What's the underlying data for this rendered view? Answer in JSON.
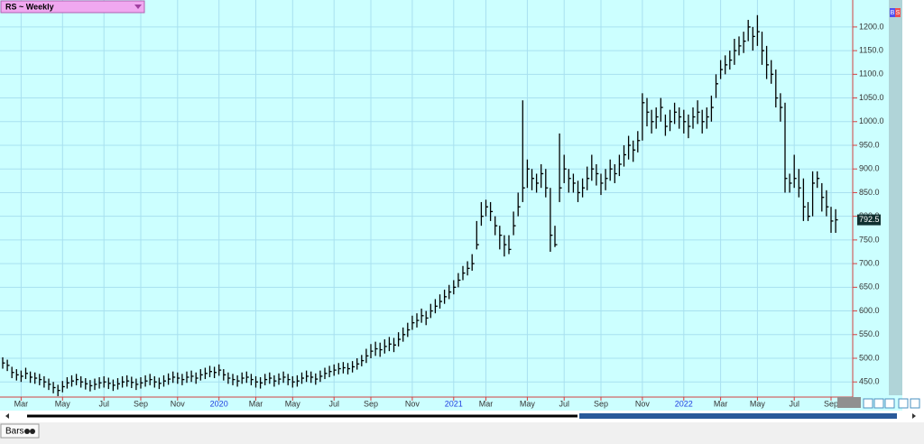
{
  "chart_data": {
    "type": "ohlc",
    "title": "RS ~ Weekly",
    "color": "#000000",
    "grid": true,
    "categories": [
      null,
      null,
      null,
      null,
      "Mar",
      null,
      null,
      null,
      null,
      null,
      null,
      null,
      null,
      "May",
      null,
      null,
      null,
      null,
      null,
      null,
      null,
      null,
      "Jul",
      null,
      null,
      null,
      null,
      null,
      null,
      null,
      "Sep",
      null,
      null,
      null,
      null,
      null,
      null,
      null,
      "Nov",
      null,
      null,
      null,
      null,
      null,
      null,
      null,
      null,
      "2020",
      null,
      null,
      null,
      null,
      null,
      null,
      null,
      "Mar",
      null,
      null,
      null,
      null,
      null,
      null,
      null,
      "May",
      null,
      null,
      null,
      null,
      null,
      null,
      null,
      null,
      "Jul",
      null,
      null,
      null,
      null,
      null,
      null,
      null,
      "Sep",
      null,
      null,
      null,
      null,
      null,
      null,
      null,
      null,
      "Nov",
      null,
      null,
      null,
      null,
      null,
      null,
      null,
      null,
      "2021",
      null,
      null,
      null,
      null,
      null,
      null,
      "Mar",
      null,
      null,
      null,
      null,
      null,
      null,
      null,
      null,
      "May",
      null,
      null,
      null,
      null,
      null,
      null,
      null,
      "Jul",
      null,
      null,
      null,
      null,
      null,
      null,
      null,
      "Sep",
      null,
      null,
      null,
      null,
      null,
      null,
      null,
      null,
      "Nov",
      null,
      null,
      null,
      null,
      null,
      null,
      null,
      null,
      "2022",
      null,
      null,
      null,
      null,
      null,
      null,
      null,
      "Mar",
      null,
      null,
      null,
      null,
      null,
      null,
      null,
      "May",
      null,
      null,
      null,
      null,
      null,
      null,
      null,
      "Jul",
      null,
      null,
      null,
      null,
      null,
      null,
      null,
      "Sep",
      null
    ],
    "high": [
      502,
      497,
      482,
      477,
      474,
      480,
      472,
      470,
      467,
      462,
      457,
      450,
      444,
      452,
      460,
      464,
      467,
      462,
      458,
      454,
      457,
      460,
      462,
      459,
      455,
      458,
      462,
      464,
      461,
      457,
      460,
      464,
      467,
      462,
      459,
      464,
      468,
      472,
      470,
      467,
      472,
      474,
      470,
      477,
      480,
      484,
      482,
      487,
      477,
      470,
      467,
      464,
      470,
      472,
      467,
      462,
      460,
      467,
      470,
      464,
      468,
      472,
      467,
      462,
      464,
      470,
      474,
      472,
      468,
      474,
      480,
      484,
      487,
      490,
      492,
      490,
      494,
      500,
      507,
      520,
      530,
      535,
      533,
      540,
      545,
      543,
      555,
      565,
      575,
      590,
      595,
      605,
      600,
      615,
      625,
      635,
      645,
      655,
      665,
      680,
      695,
      705,
      720,
      790,
      830,
      835,
      830,
      800,
      780,
      760,
      760,
      810,
      850,
      1045,
      920,
      900,
      890,
      910,
      900,
      860,
      780,
      975,
      930,
      900,
      890,
      875,
      880,
      905,
      930,
      910,
      890,
      900,
      920,
      910,
      930,
      950,
      970,
      960,
      980,
      1060,
      1050,
      1025,
      1030,
      1050,
      1015,
      1025,
      1040,
      1030,
      1025,
      1015,
      1030,
      1045,
      1025,
      1030,
      1055,
      1100,
      1130,
      1140,
      1150,
      1175,
      1180,
      1190,
      1215,
      1200,
      1225,
      1190,
      1160,
      1130,
      1110,
      1060,
      1040,
      890,
      930,
      900,
      880,
      830,
      895,
      895,
      870,
      855,
      820,
      815
    ],
    "low": [
      478,
      473,
      458,
      453,
      450,
      456,
      448,
      446,
      443,
      438,
      433,
      426,
      420,
      428,
      436,
      440,
      443,
      438,
      434,
      430,
      433,
      436,
      438,
      435,
      431,
      434,
      438,
      440,
      437,
      433,
      436,
      440,
      443,
      438,
      435,
      440,
      444,
      448,
      446,
      443,
      448,
      450,
      446,
      453,
      456,
      460,
      458,
      463,
      453,
      446,
      443,
      440,
      446,
      448,
      443,
      438,
      436,
      443,
      446,
      440,
      444,
      448,
      443,
      438,
      440,
      446,
      450,
      448,
      444,
      450,
      456,
      460,
      463,
      466,
      468,
      466,
      470,
      476,
      483,
      490,
      500,
      505,
      503,
      510,
      515,
      513,
      525,
      535,
      545,
      560,
      565,
      575,
      570,
      585,
      595,
      605,
      615,
      625,
      635,
      650,
      665,
      675,
      685,
      730,
      780,
      800,
      790,
      760,
      730,
      715,
      720,
      760,
      800,
      830,
      860,
      855,
      850,
      860,
      840,
      725,
      735,
      830,
      870,
      850,
      850,
      830,
      840,
      855,
      875,
      865,
      845,
      855,
      875,
      870,
      885,
      905,
      920,
      915,
      935,
      960,
      990,
      975,
      985,
      1000,
      970,
      980,
      995,
      985,
      975,
      965,
      985,
      995,
      975,
      985,
      1000,
      1050,
      1090,
      1100,
      1110,
      1120,
      1140,
      1145,
      1170,
      1150,
      1160,
      1120,
      1090,
      1080,
      1030,
      1000,
      850,
      850,
      860,
      840,
      790,
      790,
      800,
      860,
      810,
      800,
      765,
      765
    ],
    "close": [
      490,
      485,
      470,
      465,
      462,
      468,
      460,
      458,
      455,
      450,
      445,
      438,
      432,
      440,
      448,
      452,
      455,
      450,
      446,
      442,
      445,
      448,
      450,
      447,
      443,
      446,
      450,
      452,
      449,
      445,
      448,
      452,
      455,
      450,
      447,
      452,
      456,
      460,
      458,
      455,
      460,
      462,
      458,
      465,
      468,
      472,
      470,
      475,
      465,
      458,
      455,
      452,
      458,
      460,
      455,
      450,
      448,
      455,
      458,
      452,
      456,
      460,
      455,
      450,
      452,
      458,
      462,
      460,
      456,
      462,
      468,
      472,
      475,
      478,
      480,
      478,
      482,
      488,
      495,
      505,
      515,
      520,
      518,
      525,
      530,
      528,
      540,
      550,
      560,
      575,
      580,
      590,
      585,
      600,
      610,
      620,
      630,
      640,
      650,
      665,
      680,
      690,
      700,
      740,
      800,
      820,
      810,
      780,
      760,
      740,
      730,
      780,
      820,
      860,
      900,
      880,
      870,
      890,
      860,
      760,
      740,
      860,
      900,
      880,
      870,
      850,
      860,
      880,
      900,
      890,
      870,
      880,
      900,
      890,
      910,
      930,
      950,
      940,
      960,
      1040,
      1020,
      1000,
      1010,
      1030,
      990,
      1000,
      1020,
      1010,
      1000,
      990,
      1010,
      1020,
      1000,
      1010,
      1030,
      1080,
      1110,
      1120,
      1130,
      1150,
      1160,
      1170,
      1200,
      1180,
      1190,
      1150,
      1120,
      1100,
      1050,
      1030,
      880,
      870,
      880,
      860,
      820,
      800,
      870,
      880,
      840,
      820,
      790,
      792.5
    ],
    "ylim": [
      418,
      1257
    ],
    "yticks": [
      {
        "value": 450,
        "label": "450.0"
      },
      {
        "value": 500,
        "label": "500.0"
      },
      {
        "value": 550,
        "label": "550.0"
      },
      {
        "value": 600,
        "label": "600.0"
      },
      {
        "value": 650,
        "label": "650.0"
      },
      {
        "value": 700,
        "label": "700.0"
      },
      {
        "value": 750,
        "label": "750.0"
      },
      {
        "value": 800,
        "label": "800.0"
      },
      {
        "value": 850,
        "label": "850.0"
      },
      {
        "value": 900,
        "label": "900.0"
      },
      {
        "value": 950,
        "label": "950.0"
      },
      {
        "value": 1000,
        "label": "1000.0"
      },
      {
        "value": 1050,
        "label": "1050.0"
      },
      {
        "value": 1100,
        "label": "1100.0"
      },
      {
        "value": 1150,
        "label": "1150.0"
      },
      {
        "value": 1200,
        "label": "1200.0"
      }
    ]
  },
  "ui": {
    "buttons": [
      "B",
      "S"
    ],
    "tab": "Bars"
  }
}
